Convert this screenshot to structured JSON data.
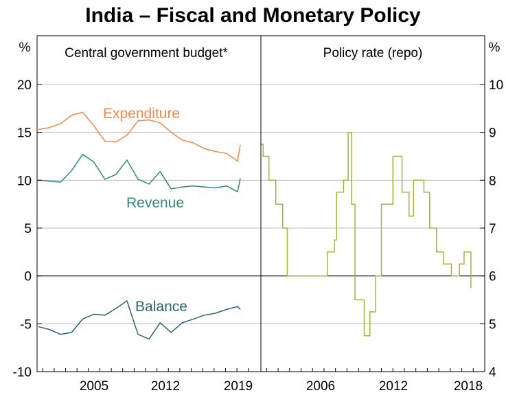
{
  "title": "India – Fiscal and Monetary Policy",
  "chart_data": [
    {
      "type": "line",
      "panel_title": "Central government budget*",
      "unit": "%",
      "ylim": [
        -10,
        20
      ],
      "yticks": [
        "20",
        "15",
        "10",
        "5",
        "0",
        "-5",
        "-10"
      ],
      "xticks": [
        "2005",
        "2012",
        "2019"
      ],
      "grid": true,
      "series": [
        {
          "name": "Expenditure",
          "color": "#f4884a",
          "x": [
            2001,
            2002,
            2003,
            2004,
            2005,
            2006,
            2007,
            2008,
            2009,
            2010,
            2011,
            2012,
            2013,
            2014,
            2015,
            2016,
            2017,
            2018,
            2019
          ],
          "values": [
            15.3,
            15.5,
            15.9,
            16.8,
            17.1,
            15.7,
            14.1,
            14.0,
            14.7,
            16.2,
            16.3,
            16.0,
            15.0,
            14.2,
            13.9,
            13.3,
            13.0,
            12.8,
            12.0
          ]
        },
        {
          "name": "Revenue",
          "color": "#2e8b75",
          "x": [
            2001,
            2002,
            2003,
            2004,
            2005,
            2006,
            2007,
            2008,
            2009,
            2010,
            2011,
            2012,
            2013,
            2014,
            2015,
            2016,
            2017,
            2018,
            2019
          ],
          "values": [
            10.0,
            9.9,
            9.8,
            11.0,
            12.7,
            11.9,
            10.1,
            10.6,
            12.1,
            10.1,
            9.6,
            10.9,
            9.1,
            9.3,
            9.4,
            9.3,
            9.2,
            9.4,
            8.8
          ]
        },
        {
          "name": "Balance",
          "color": "#2b6472",
          "x": [
            2001,
            2002,
            2003,
            2004,
            2005,
            2006,
            2007,
            2008,
            2009,
            2010,
            2011,
            2012,
            2013,
            2014,
            2015,
            2016,
            2017,
            2018,
            2019
          ],
          "values": [
            -5.3,
            -5.6,
            -6.1,
            -5.9,
            -4.5,
            -4.0,
            -4.1,
            -3.4,
            -2.6,
            -6.1,
            -6.6,
            -4.9,
            -5.9,
            -4.9,
            -4.5,
            -4.1,
            -3.9,
            -3.5,
            -3.2
          ]
        }
      ]
    },
    {
      "type": "line",
      "panel_title": "Policy rate (repo)",
      "unit": "%",
      "ylim": [
        4,
        10
      ],
      "yticks": [
        "10",
        "9",
        "8",
        "7",
        "6",
        "5",
        "4"
      ],
      "xticks": [
        "2006",
        "2012",
        "2018"
      ],
      "grid": true,
      "series": [
        {
          "color": "#a5b339",
          "x": [
            2001.0,
            2001.2,
            2001.7,
            2002.3,
            2002.9,
            2003.3,
            2004.4,
            2006.8,
            2007.4,
            2007.6,
            2008.2,
            2008.6,
            2008.9,
            2009.2,
            2010.0,
            2010.5,
            2011.0,
            2011.5,
            2012.5,
            2013.3,
            2013.9,
            2014.3,
            2015.2,
            2015.7,
            2016.3,
            2016.9,
            2017.6,
            2018.0,
            2018.3,
            2018.7,
            2019.3
          ],
          "values": [
            8.75,
            8.5,
            8.0,
            7.5,
            7.0,
            6.0,
            6.0,
            6.5,
            6.75,
            7.75,
            8.0,
            9.0,
            7.5,
            5.5,
            4.75,
            5.25,
            6.0,
            7.5,
            8.5,
            7.75,
            7.25,
            8.0,
            7.75,
            7.0,
            6.5,
            6.25,
            6.0,
            6.0,
            6.25,
            6.5,
            5.75
          ]
        }
      ]
    }
  ]
}
